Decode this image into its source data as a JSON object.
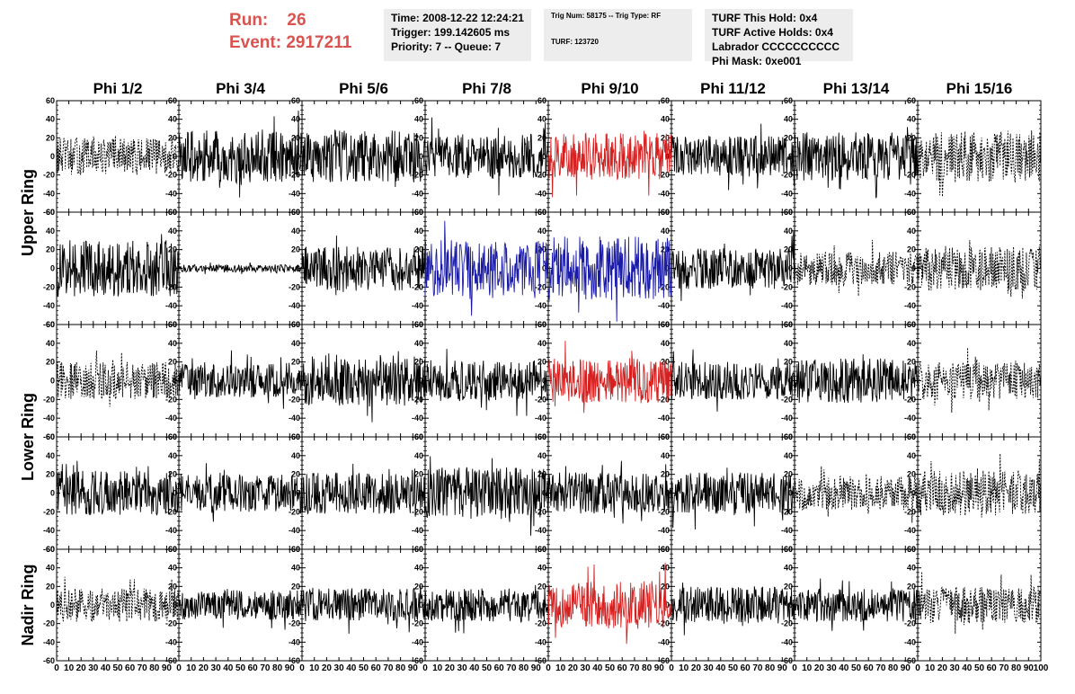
{
  "header": {
    "run_label": "Run:",
    "run_value": "26",
    "event_label": "Event:",
    "event_value": "2917211",
    "run_color": "#d9534f"
  },
  "info_time": {
    "time": "Time: 2008-12-22 12:24:21",
    "trigger": "Trigger: 199.142605 ms",
    "priority": "Priority: 7 -- Queue: 7"
  },
  "info_trig": {
    "trig": "Trig Num: 58175 -- Trig Type: RF",
    "turf": "TURF: 123720"
  },
  "info_turf": {
    "hold": "TURF This Hold: 0x4",
    "active": "TURF Active Holds: 0x4",
    "labrador": "Labrador CCCCCCCCCC",
    "phimask": "Phi Mask: 0xe001"
  },
  "chart_data": {
    "type": "line",
    "columns": [
      "Phi 1/2",
      "Phi 3/4",
      "Phi 5/6",
      "Phi 7/8",
      "Phi 9/10",
      "Phi 11/12",
      "Phi 13/14",
      "Phi 15/16"
    ],
    "rows": [
      "Upper Ring",
      "Lower Ring",
      "Nadir Ring"
    ],
    "ylim": [
      -60,
      60
    ],
    "yticks": [
      -60,
      -40,
      -20,
      0,
      20,
      40,
      60
    ],
    "xlim": [
      0,
      100
    ],
    "xticks": [
      0,
      10,
      20,
      30,
      40,
      50,
      60,
      70,
      80,
      90,
      100
    ],
    "colors": {
      "black": "#000000",
      "red": "#d62020",
      "blue": "#1a1aa8"
    },
    "panels": [
      {
        "row": 0,
        "col": 0,
        "style": "dashed",
        "color": "black",
        "amplitude": 20
      },
      {
        "row": 0,
        "col": 1,
        "style": "solid",
        "color": "black",
        "amplitude": 28
      },
      {
        "row": 0,
        "col": 2,
        "style": "solid",
        "color": "black",
        "amplitude": 28
      },
      {
        "row": 0,
        "col": 3,
        "style": "solid",
        "color": "black",
        "amplitude": 24
      },
      {
        "row": 0,
        "col": 4,
        "style": "solid",
        "color": "red",
        "amplitude": 25
      },
      {
        "row": 0,
        "col": 5,
        "style": "solid",
        "color": "black",
        "amplitude": 22
      },
      {
        "row": 0,
        "col": 6,
        "style": "solid",
        "color": "black",
        "amplitude": 26
      },
      {
        "row": 0,
        "col": 7,
        "style": "dashed",
        "color": "black",
        "amplitude": 28
      },
      {
        "row": 1,
        "col": 0,
        "style": "solid",
        "color": "black",
        "amplitude": 30
      },
      {
        "row": 1,
        "col": 1,
        "style": "solid",
        "color": "black",
        "amplitude": 4
      },
      {
        "row": 1,
        "col": 2,
        "style": "solid",
        "color": "black",
        "amplitude": 24
      },
      {
        "row": 1,
        "col": 3,
        "style": "solid",
        "color": "blue",
        "amplitude": 30
      },
      {
        "row": 1,
        "col": 4,
        "style": "solid",
        "color": "blue",
        "amplitude": 34
      },
      {
        "row": 1,
        "col": 5,
        "style": "solid",
        "color": "black",
        "amplitude": 22
      },
      {
        "row": 1,
        "col": 6,
        "style": "dashed",
        "color": "black",
        "amplitude": 18
      },
      {
        "row": 1,
        "col": 7,
        "style": "dashed",
        "color": "black",
        "amplitude": 24
      },
      {
        "row": 2,
        "col": 0,
        "style": "dashed",
        "color": "black",
        "amplitude": 20
      },
      {
        "row": 2,
        "col": 1,
        "style": "solid",
        "color": "black",
        "amplitude": 18
      },
      {
        "row": 2,
        "col": 2,
        "style": "solid",
        "color": "black",
        "amplitude": 28
      },
      {
        "row": 2,
        "col": 3,
        "style": "solid",
        "color": "black",
        "amplitude": 22
      },
      {
        "row": 2,
        "col": 4,
        "style": "solid",
        "color": "red",
        "amplitude": 24
      },
      {
        "row": 2,
        "col": 5,
        "style": "solid",
        "color": "black",
        "amplitude": 20
      },
      {
        "row": 2,
        "col": 6,
        "style": "solid",
        "color": "black",
        "amplitude": 24
      },
      {
        "row": 2,
        "col": 7,
        "style": "dashed",
        "color": "black",
        "amplitude": 20
      },
      {
        "row": 3,
        "col": 0,
        "style": "solid",
        "color": "black",
        "amplitude": 24
      },
      {
        "row": 3,
        "col": 1,
        "style": "solid",
        "color": "black",
        "amplitude": 20
      },
      {
        "row": 3,
        "col": 2,
        "style": "solid",
        "color": "black",
        "amplitude": 22
      },
      {
        "row": 3,
        "col": 3,
        "style": "solid",
        "color": "black",
        "amplitude": 28
      },
      {
        "row": 3,
        "col": 4,
        "style": "solid",
        "color": "black",
        "amplitude": 22
      },
      {
        "row": 3,
        "col": 5,
        "style": "solid",
        "color": "black",
        "amplitude": 22
      },
      {
        "row": 3,
        "col": 6,
        "style": "dashed",
        "color": "black",
        "amplitude": 18
      },
      {
        "row": 3,
        "col": 7,
        "style": "dashed",
        "color": "black",
        "amplitude": 24
      },
      {
        "row": 4,
        "col": 0,
        "style": "dashed",
        "color": "black",
        "amplitude": 18
      },
      {
        "row": 4,
        "col": 1,
        "style": "solid",
        "color": "black",
        "amplitude": 16
      },
      {
        "row": 4,
        "col": 2,
        "style": "solid",
        "color": "black",
        "amplitude": 18
      },
      {
        "row": 4,
        "col": 3,
        "style": "solid",
        "color": "black",
        "amplitude": 18
      },
      {
        "row": 4,
        "col": 4,
        "style": "solid",
        "color": "red",
        "amplitude": 26
      },
      {
        "row": 4,
        "col": 5,
        "style": "solid",
        "color": "black",
        "amplitude": 20
      },
      {
        "row": 4,
        "col": 6,
        "style": "solid",
        "color": "black",
        "amplitude": 18
      },
      {
        "row": 4,
        "col": 7,
        "style": "dashed",
        "color": "black",
        "amplitude": 20
      }
    ]
  }
}
